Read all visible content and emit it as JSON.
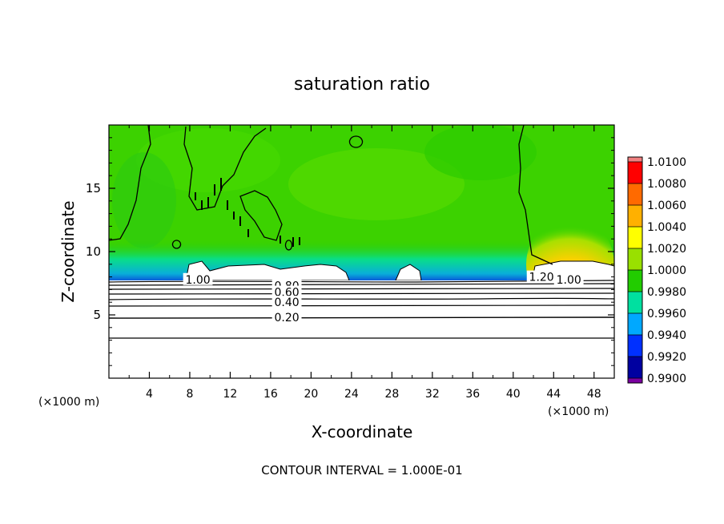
{
  "chart_data": {
    "type": "heatmap",
    "title": "saturation ratio",
    "xlabel": "X-coordinate",
    "ylabel": "Z-coordinate",
    "x_unit_left": "(×1000 m)",
    "x_unit_right": "(×1000 m)",
    "xlim": [
      0,
      50
    ],
    "ylim": [
      0,
      20
    ],
    "x_ticks": [
      4,
      8,
      12,
      16,
      20,
      24,
      28,
      32,
      36,
      40,
      44,
      48
    ],
    "y_ticks": [
      5,
      10,
      15
    ],
    "colorbar": {
      "levels": [
        "1.0100",
        "1.0080",
        "1.0060",
        "1.0040",
        "1.0020",
        "1.0000",
        "0.9980",
        "0.9960",
        "0.9940",
        "0.9920",
        "0.9900"
      ],
      "colors": [
        "#f08080",
        "#ff0000",
        "#ff6a00",
        "#ffb000",
        "#ffff00",
        "#99e000",
        "#22cc00",
        "#00e0a0",
        "#00a8ff",
        "#0030ff",
        "#0000a0",
        "#7a00a0"
      ]
    },
    "contour_labels": [
      {
        "text": "1.00",
        "x": 8.8,
        "z": 7.8
      },
      {
        "text": "0.80",
        "x": 17.6,
        "z": 7.3
      },
      {
        "text": "0.60",
        "x": 17.6,
        "z": 6.8
      },
      {
        "text": "0.40",
        "x": 17.6,
        "z": 6.0
      },
      {
        "text": "0.20",
        "x": 17.6,
        "z": 4.8
      },
      {
        "text": "1.20",
        "x": 42.8,
        "z": 8.0
      },
      {
        "text": "1.00",
        "x": 45.5,
        "z": 7.8
      }
    ],
    "contour_interval": "CONTOUR INTERVAL = 1.000E-01"
  }
}
